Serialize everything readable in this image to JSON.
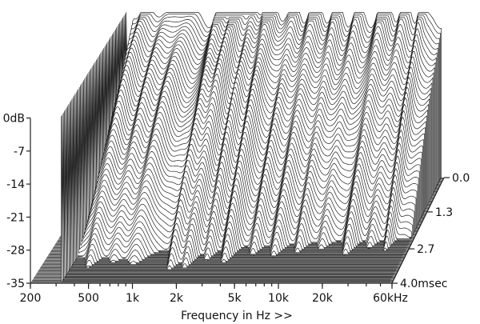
{
  "chart_data": {
    "type": "area",
    "style": "cumulative spectral decay (waterfall)",
    "xlabel": "Frequency in Hz >>",
    "x_scale": "log",
    "xlim": [
      200,
      60000
    ],
    "x_ticks": [
      {
        "value": 200,
        "label": "200"
      },
      {
        "value": 500,
        "label": "500"
      },
      {
        "value": 1000,
        "label": "1k"
      },
      {
        "value": 2000,
        "label": "2k"
      },
      {
        "value": 5000,
        "label": "5k"
      },
      {
        "value": 10000,
        "label": "10k"
      },
      {
        "value": 20000,
        "label": "20k"
      },
      {
        "value": 60000,
        "label": "60kHz"
      }
    ],
    "ylim": [
      -35,
      0
    ],
    "y_ticks": [
      {
        "value": 0,
        "label": "0dB"
      },
      {
        "value": -7,
        "label": "-7"
      },
      {
        "value": -14,
        "label": "-14"
      },
      {
        "value": -21,
        "label": "-21"
      },
      {
        "value": -28,
        "label": "-28"
      },
      {
        "value": -35,
        "label": "-35"
      }
    ],
    "zlim": [
      0,
      4.0
    ],
    "z_ticks": [
      {
        "value": 0,
        "label": "0.0"
      },
      {
        "value": 1.3,
        "label": "1.3"
      },
      {
        "value": 2.7,
        "label": "2.7"
      },
      {
        "value": 4.0,
        "label": "4.0msec"
      }
    ],
    "grid": false,
    "surface_fill": "#ffffff",
    "line_color": "#222222",
    "floor_colors": [
      "#5e5e5e",
      "#8a8a8a"
    ]
  }
}
